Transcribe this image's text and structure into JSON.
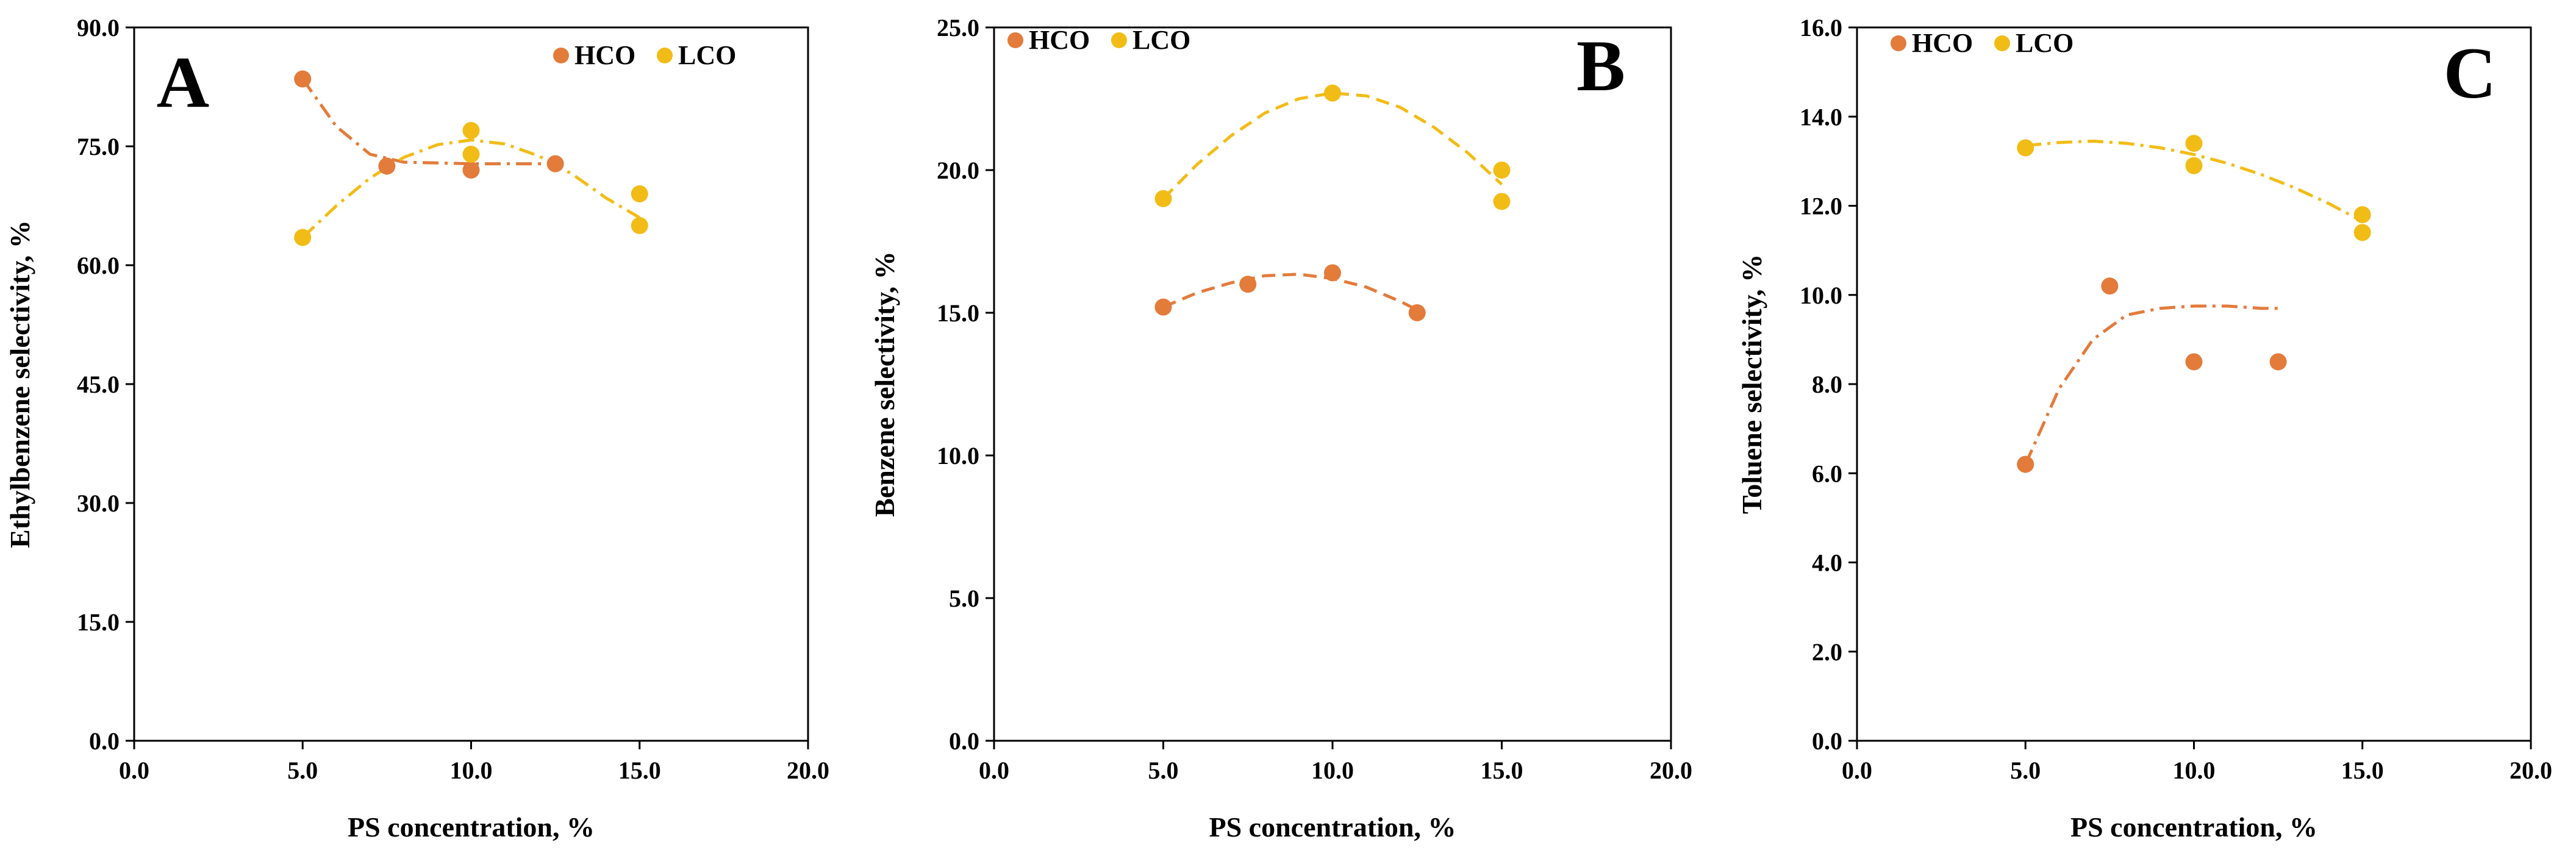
{
  "colors": {
    "HCO": "#E37B3B",
    "LCO": "#F2BC16"
  },
  "chart_data": [
    {
      "panel": "A",
      "type": "scatter",
      "xlabel": "PS concentration, %",
      "ylabel": "Ethylbenzene selectivity, %",
      "xlim": [
        0,
        20
      ],
      "ylim": [
        0,
        90
      ],
      "xticks": [
        "0.0",
        "5.0",
        "10.0",
        "15.0",
        "20.0"
      ],
      "yticks": [
        "0.0",
        "15.0",
        "30.0",
        "45.0",
        "60.0",
        "75.0",
        "90.0"
      ],
      "legend": [
        "HCO",
        "LCO"
      ],
      "legend_position": "top-right",
      "series": [
        {
          "name": "HCO",
          "points": [
            [
              5,
              83.5
            ],
            [
              7.5,
              72.5
            ],
            [
              10,
              72.0
            ],
            [
              12.5,
              72.8
            ]
          ],
          "trend": [
            [
              5,
              83.5
            ],
            [
              6,
              77.5
            ],
            [
              7,
              74.0
            ],
            [
              8,
              73.0
            ],
            [
              9,
              72.9
            ],
            [
              10,
              72.8
            ],
            [
              11,
              72.8
            ],
            [
              12,
              72.8
            ],
            [
              12.5,
              72.8
            ]
          ]
        },
        {
          "name": "LCO",
          "points": [
            [
              5,
              63.5
            ],
            [
              10,
              77.0
            ],
            [
              10,
              74.0
            ],
            [
              15,
              69.0
            ],
            [
              15,
              65.0
            ]
          ],
          "trend": [
            [
              5,
              63.5
            ],
            [
              6,
              67.5
            ],
            [
              7,
              71.0
            ],
            [
              8,
              73.6
            ],
            [
              9,
              75.2
            ],
            [
              10,
              75.8
            ],
            [
              11,
              75.3
            ],
            [
              12,
              73.8
            ],
            [
              13,
              71.5
            ],
            [
              14,
              68.5
            ],
            [
              15,
              66.0
            ]
          ]
        }
      ]
    },
    {
      "panel": "B",
      "type": "scatter",
      "xlabel": "PS concentration, %",
      "ylabel": "Benzene selectivity, %",
      "xlim": [
        0,
        20
      ],
      "ylim": [
        0,
        25
      ],
      "xticks": [
        "0.0",
        "5.0",
        "10.0",
        "15.0",
        "20.0"
      ],
      "yticks": [
        "0.0",
        "5.0",
        "10.0",
        "15.0",
        "20.0",
        "25.0"
      ],
      "legend": [
        "HCO",
        "LCO"
      ],
      "legend_position": "top-left",
      "series": [
        {
          "name": "HCO",
          "points": [
            [
              5,
              15.2
            ],
            [
              7.5,
              16.0
            ],
            [
              10,
              16.4
            ],
            [
              12.5,
              15.0
            ]
          ],
          "trend": [
            [
              5,
              15.2
            ],
            [
              6,
              15.7
            ],
            [
              7,
              16.05
            ],
            [
              8,
              16.3
            ],
            [
              9,
              16.35
            ],
            [
              10,
              16.2
            ],
            [
              11,
              15.9
            ],
            [
              12,
              15.4
            ],
            [
              12.5,
              15.1
            ]
          ]
        },
        {
          "name": "LCO",
          "points": [
            [
              5,
              19.0
            ],
            [
              10,
              22.7
            ],
            [
              15,
              20.0
            ],
            [
              15,
              18.9
            ]
          ],
          "trend": [
            [
              5,
              19.0
            ],
            [
              6,
              20.2
            ],
            [
              7,
              21.2
            ],
            [
              8,
              22.0
            ],
            [
              9,
              22.5
            ],
            [
              10,
              22.7
            ],
            [
              11,
              22.6
            ],
            [
              12,
              22.2
            ],
            [
              13,
              21.5
            ],
            [
              14,
              20.6
            ],
            [
              15,
              19.5
            ]
          ]
        }
      ]
    },
    {
      "panel": "C",
      "type": "scatter",
      "xlabel": "PS concentration, %",
      "ylabel": "Toluene selectivity, %",
      "xlim": [
        0,
        20
      ],
      "ylim": [
        0,
        16
      ],
      "xticks": [
        "0.0",
        "5.0",
        "10.0",
        "15.0",
        "20.0"
      ],
      "yticks": [
        "0.0",
        "2.0",
        "4.0",
        "6.0",
        "8.0",
        "10.0",
        "12.0",
        "14.0",
        "16.0"
      ],
      "legend": [
        "HCO",
        "LCO"
      ],
      "legend_position": "top-left",
      "series": [
        {
          "name": "HCO",
          "points": [
            [
              5,
              6.2
            ],
            [
              7.5,
              10.2
            ],
            [
              10,
              8.5
            ],
            [
              12.5,
              8.5
            ]
          ],
          "trend": [
            [
              5,
              6.2
            ],
            [
              6,
              7.9
            ],
            [
              7,
              9.0
            ],
            [
              8,
              9.55
            ],
            [
              9,
              9.7
            ],
            [
              10,
              9.75
            ],
            [
              11,
              9.75
            ],
            [
              12,
              9.7
            ],
            [
              12.5,
              9.7
            ]
          ]
        },
        {
          "name": "LCO",
          "points": [
            [
              5,
              13.3
            ],
            [
              10,
              13.4
            ],
            [
              10,
              12.9
            ],
            [
              15,
              11.8
            ],
            [
              15,
              11.4
            ]
          ],
          "trend": [
            [
              5,
              13.35
            ],
            [
              6,
              13.42
            ],
            [
              7,
              13.45
            ],
            [
              8,
              13.4
            ],
            [
              9,
              13.3
            ],
            [
              10,
              13.15
            ],
            [
              11,
              12.95
            ],
            [
              12,
              12.7
            ],
            [
              13,
              12.4
            ],
            [
              14,
              12.05
            ],
            [
              15,
              11.65
            ]
          ]
        }
      ]
    }
  ]
}
